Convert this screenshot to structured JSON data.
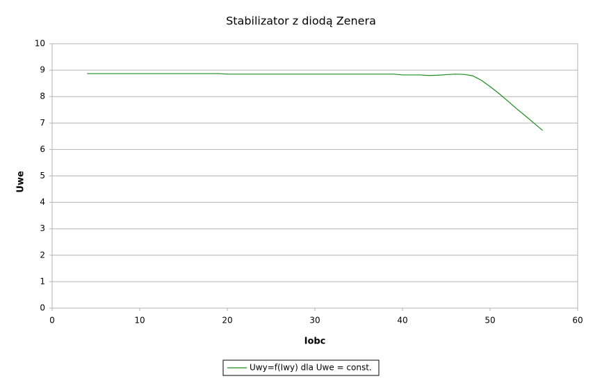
{
  "chart_data": {
    "type": "line",
    "title": "Stabilizator z diodą Zenera",
    "x_label": "Iobc",
    "y_label": "Uwe",
    "x": [
      4,
      8,
      12,
      16,
      19,
      20,
      24,
      28,
      32,
      36,
      39,
      40,
      42,
      43,
      44,
      45,
      46,
      47,
      48,
      49,
      50,
      51,
      52,
      53,
      54,
      55,
      56
    ],
    "series": [
      {
        "name": "Uwy=f(Iwy) dla Uwe = const.",
        "color": "#1a8c1a",
        "values": [
          8.87,
          8.87,
          8.87,
          8.87,
          8.87,
          8.85,
          8.85,
          8.85,
          8.85,
          8.85,
          8.85,
          8.82,
          8.82,
          8.8,
          8.81,
          8.83,
          8.85,
          8.84,
          8.79,
          8.62,
          8.38,
          8.12,
          7.84,
          7.55,
          7.28,
          7.0,
          6.72
        ]
      }
    ],
    "xlim": [
      0,
      60
    ],
    "xticks": [
      0,
      10,
      20,
      30,
      40,
      50,
      60
    ],
    "ylim": [
      0,
      10
    ],
    "yticks": [
      0,
      1,
      2,
      3,
      4,
      5,
      6,
      7,
      8,
      9,
      10
    ],
    "grid": true,
    "legend": "bottom"
  }
}
